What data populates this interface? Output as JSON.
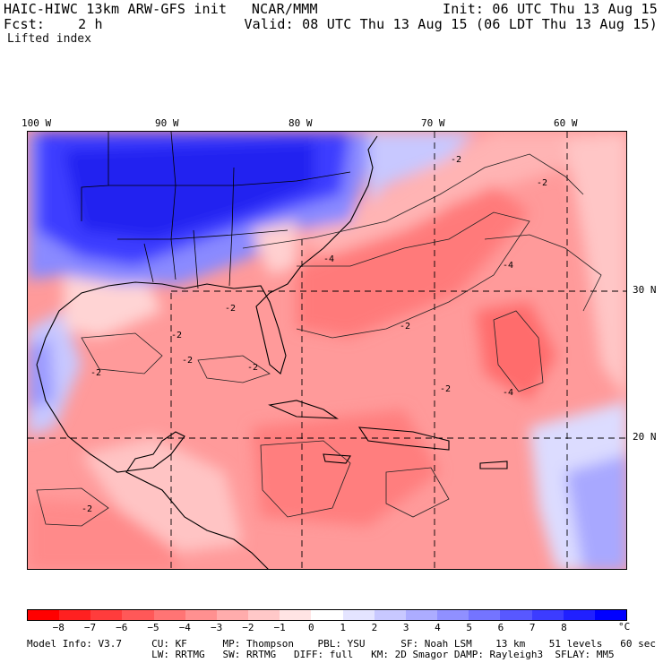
{
  "header": {
    "line1_left": "HAIC-HIWC 13km ARW-GFS init   NCAR/MMM",
    "line1_right": "Init: 06 UTC Thu 13 Aug 15",
    "line2_left": "Fcst:    2 h",
    "line2_right": "Valid: 08 UTC Thu 13 Aug 15 (06 LDT Thu 13 Aug 15)",
    "field": "Lifted index"
  },
  "map": {
    "lon_labels": [
      "100 W",
      "90 W",
      "80 W",
      "70 W",
      "60 W"
    ],
    "lat_labels": [
      "30 N",
      "20 N"
    ],
    "contour_labels": [
      "-2",
      "-4",
      "-2",
      "-2",
      "-2",
      "-2",
      "-2",
      "-2",
      "-2",
      "-4",
      "-4",
      "-2",
      "-2"
    ]
  },
  "colorbar": {
    "colors": [
      "#ff0000",
      "#ff2020",
      "#ff3c3c",
      "#ff5858",
      "#ff7474",
      "#ff9090",
      "#ffacac",
      "#ffc8c8",
      "#ffe4e4",
      "#ffffff",
      "#e4e4ff",
      "#c8c8ff",
      "#acacff",
      "#9090ff",
      "#7474ff",
      "#5858ff",
      "#3c3cff",
      "#2020ff",
      "#0000ff"
    ],
    "tick_labels": [
      "−8",
      "−7",
      "−6",
      "−5",
      "−4",
      "−3",
      "−2",
      "−1",
      "0",
      "1",
      "2",
      "3",
      "4",
      "5",
      "6",
      "7",
      "8"
    ],
    "unit": "°C"
  },
  "footer": {
    "line1": "Model Info: V3.7     CU: KF      MP: Thompson    PBL: YSU      SF: Noah LSM    13 km    51 levels   60 sec",
    "line2": "                     LW: RRTMG   SW: RRTMG   DIFF: full   KM: 2D Smagor DAMP: Rayleigh3  SFLAY: MM5"
  }
}
